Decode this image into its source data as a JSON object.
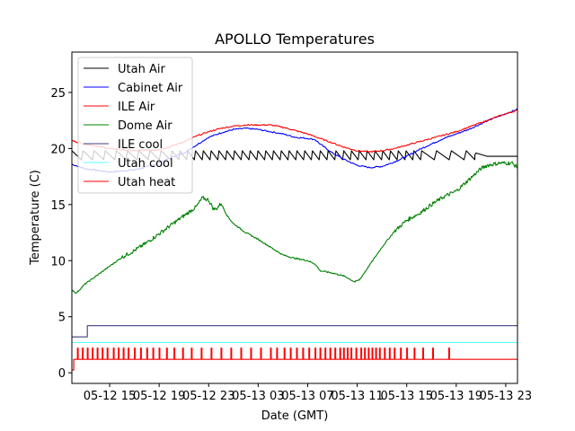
{
  "chart_data": {
    "type": "line",
    "title": "APOLLO Temperatures",
    "xlabel": "Date (GMT)",
    "ylabel": "Temperature (C)",
    "x_unit": "hours since 05-12 00:00 GMT",
    "xlim": [
      11.95,
      47.95
    ],
    "ylim": [
      -0.95,
      28.6
    ],
    "grid": false,
    "legend_position": "top-left",
    "x_ticks": [
      {
        "value": 15,
        "label": "05-12 15"
      },
      {
        "value": 19,
        "label": "05-12 19"
      },
      {
        "value": 23,
        "label": "05-12 23"
      },
      {
        "value": 27,
        "label": "05-13 03"
      },
      {
        "value": 31,
        "label": "05-13 07"
      },
      {
        "value": 35,
        "label": "05-13 11"
      },
      {
        "value": 39,
        "label": "05-13 15"
      },
      {
        "value": 43,
        "label": "05-13 19"
      },
      {
        "value": 47,
        "label": "05-13 23"
      }
    ],
    "y_ticks": [
      {
        "value": 0,
        "label": "0"
      },
      {
        "value": 5,
        "label": "5"
      },
      {
        "value": 10,
        "label": "10"
      },
      {
        "value": 15,
        "label": "15"
      },
      {
        "value": 20,
        "label": "20"
      },
      {
        "value": 25,
        "label": "25"
      }
    ],
    "series": [
      {
        "name": "Utah Air",
        "color": "#000000",
        "style": "sawtooth",
        "x": [
          11.95,
          44.5,
          44.6,
          45.5,
          47.95
        ],
        "y": [
          19.4,
          19.4,
          19.6,
          19.3,
          19.3
        ],
        "sawtooth": {
          "low": 19.0,
          "high": 19.8,
          "period_hours": [
            0.9,
            0.45,
            1.2
          ],
          "end": 44.5
        }
      },
      {
        "name": "Cabinet Air",
        "color": "#0000ff",
        "x": [
          11.95,
          13,
          15,
          17,
          18.5,
          20,
          21,
          22,
          23,
          24,
          25,
          26,
          27,
          28,
          29,
          30,
          31,
          31.6,
          32,
          33,
          34,
          35,
          36,
          37,
          38,
          39,
          40,
          41,
          42,
          43,
          44,
          45,
          46,
          47,
          47.95
        ],
        "y": [
          18.6,
          18.2,
          17.9,
          18.1,
          18.5,
          19.2,
          19.6,
          20.3,
          21.0,
          21.4,
          21.7,
          21.8,
          21.7,
          21.5,
          21.3,
          21.0,
          20.9,
          20.8,
          20.4,
          19.6,
          19.0,
          18.5,
          18.3,
          18.4,
          18.8,
          19.3,
          19.9,
          20.4,
          20.9,
          21.3,
          21.7,
          22.2,
          22.7,
          23.1,
          23.5
        ]
      },
      {
        "name": "ILE Air",
        "color": "#ff0000",
        "x": [
          11.95,
          13,
          15,
          17,
          19,
          20,
          21,
          22,
          23,
          24,
          25,
          26,
          27,
          28,
          29,
          30,
          31,
          32,
          33,
          34,
          35,
          36,
          37,
          38,
          39,
          40,
          41,
          42,
          43,
          44,
          45,
          46,
          47,
          47.95
        ],
        "y": [
          20.7,
          20.4,
          20.0,
          19.8,
          19.9,
          20.2,
          20.6,
          21.1,
          21.5,
          21.8,
          22.0,
          22.1,
          22.1,
          22.1,
          21.9,
          21.6,
          21.3,
          20.9,
          20.5,
          20.1,
          19.8,
          19.7,
          19.8,
          20.0,
          20.3,
          20.6,
          20.9,
          21.2,
          21.5,
          21.9,
          22.3,
          22.7,
          23.1,
          23.4
        ]
      },
      {
        "name": "Dome Air",
        "color": "#008000",
        "noise": true,
        "x": [
          11.95,
          12.3,
          13,
          14,
          15,
          16,
          17,
          18,
          19,
          20,
          21,
          22,
          22.5,
          23,
          23.4,
          23.6,
          24,
          24.5,
          25,
          26,
          27,
          28,
          29,
          30,
          31,
          31.6,
          32,
          33,
          34,
          34.8,
          35.2,
          36,
          37,
          38,
          39,
          40,
          41,
          42,
          43,
          44,
          45,
          45.5,
          46.5,
          47.5,
          47.95
        ],
        "y": [
          7.4,
          7.1,
          7.9,
          8.7,
          9.5,
          10.3,
          10.9,
          11.6,
          12.4,
          13.2,
          14.0,
          14.8,
          15.6,
          15.4,
          14.6,
          14.6,
          15.1,
          14.0,
          13.3,
          12.5,
          11.9,
          11.2,
          10.5,
          10.2,
          10.0,
          9.7,
          9.1,
          8.9,
          8.6,
          8.1,
          8.3,
          9.6,
          11.2,
          12.6,
          13.6,
          14.2,
          15.0,
          15.7,
          16.2,
          17.2,
          18.2,
          18.5,
          18.7,
          18.7,
          18.3
        ]
      },
      {
        "name": "ILE cool",
        "color": "#3f3f7f",
        "step": true,
        "x": [
          11.95,
          13.2,
          13.2,
          47.95
        ],
        "y": [
          3.2,
          3.2,
          4.2,
          4.2
        ]
      },
      {
        "name": "Utah cool",
        "color": "#60ffff",
        "x": [
          11.95,
          47.95
        ],
        "y": [
          2.7,
          2.7
        ]
      },
      {
        "name": "Utah heat",
        "color": "#ff0000",
        "pulses": true,
        "base": 1.2,
        "pulse_high": 2.2,
        "start_value": 0.25,
        "start_until": 12.1,
        "pulse_times": [
          12.4,
          12.8,
          13.2,
          13.6,
          14.0,
          14.4,
          14.8,
          15.3,
          15.7,
          16.1,
          16.5,
          17.0,
          17.5,
          18.0,
          18.5,
          19.0,
          19.6,
          20.2,
          20.9,
          21.6,
          22.4,
          23.2,
          24.0,
          24.8,
          25.6,
          26.4,
          27.2,
          28.0,
          28.5,
          29.1,
          29.6,
          30.1,
          30.6,
          31.1,
          31.6,
          32.0,
          32.4,
          32.8,
          33.2,
          33.6,
          33.9,
          34.2,
          34.5,
          34.9,
          35.3,
          35.6,
          35.9,
          36.2,
          36.5,
          36.8,
          37.2,
          37.6,
          38.0,
          38.5,
          39.0,
          39.6,
          40.3,
          41.1,
          42.4
        ]
      }
    ]
  }
}
